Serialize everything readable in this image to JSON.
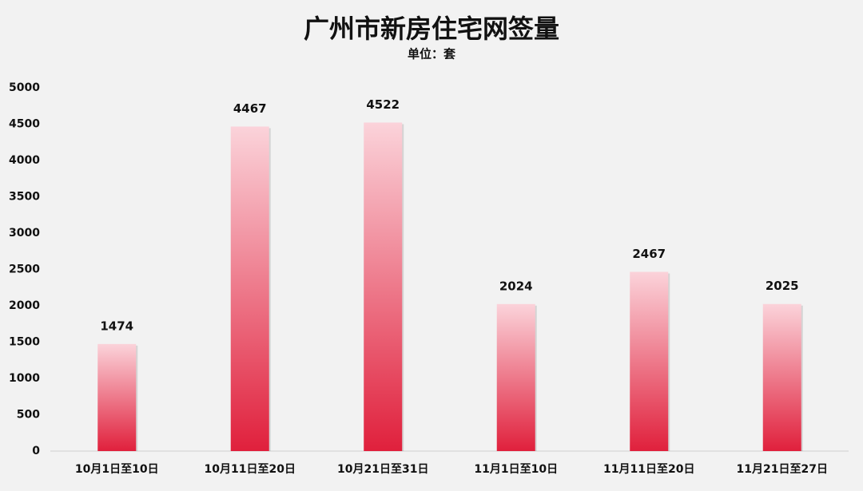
{
  "chart_data": {
    "type": "bar",
    "title": "广州市新房住宅网签量",
    "subtitle": "单位：套",
    "categories": [
      "10月1日至10日",
      "10月11日至20日",
      "10月21日至31日",
      "11月1日至10日",
      "11月11日至20日",
      "11月21日至27日"
    ],
    "values": [
      1474,
      4467,
      4522,
      2024,
      2467,
      2025
    ],
    "color": "#e0203c",
    "ylim": [
      0,
      5000
    ],
    "yticks": [
      0,
      500,
      1000,
      1500,
      2000,
      2500,
      3000,
      3500,
      4000,
      4500,
      5000
    ],
    "grid": false
  }
}
